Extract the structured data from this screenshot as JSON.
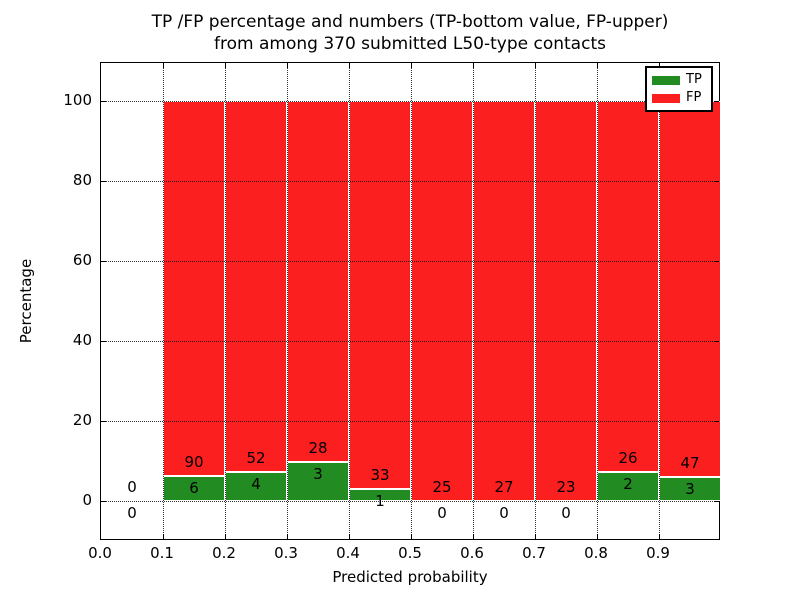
{
  "chart_data": {
    "type": "bar",
    "subtype": "stacked-percentage-histogram",
    "title_lines": [
      "TP /FP percentage and numbers (TP-bottom value, FP-upper)",
      "from among 370 submitted L50-type contacts"
    ],
    "total_contacts_in_title": 370,
    "xlabel": "Predicted probability",
    "ylabel": "Percentage",
    "xlim": [
      0.0,
      1.0
    ],
    "ylim": [
      -10,
      109.5
    ],
    "xticks": [
      {
        "value": 0.0,
        "label": "0.0"
      },
      {
        "value": 0.1,
        "label": "0.1"
      },
      {
        "value": 0.2,
        "label": "0.2"
      },
      {
        "value": 0.3,
        "label": "0.3"
      },
      {
        "value": 0.4,
        "label": "0.4"
      },
      {
        "value": 0.5,
        "label": "0.5"
      },
      {
        "value": 0.6,
        "label": "0.6"
      },
      {
        "value": 0.7,
        "label": "0.7"
      },
      {
        "value": 0.8,
        "label": "0.8"
      },
      {
        "value": 0.9,
        "label": "0.9"
      }
    ],
    "yticks": [
      {
        "value": 0,
        "label": "0"
      },
      {
        "value": 20,
        "label": "20"
      },
      {
        "value": 40,
        "label": "40"
      },
      {
        "value": 60,
        "label": "60"
      },
      {
        "value": 80,
        "label": "80"
      },
      {
        "value": 100,
        "label": "100"
      }
    ],
    "grid": {
      "visible": true,
      "style": "dotted",
      "color": "#000000"
    },
    "colors": {
      "tp": "#228b22",
      "fp": "#fb1f1f",
      "bar_edge": "#ffffff"
    },
    "legend": {
      "position": "upper-right",
      "entries": [
        {
          "label": "TP",
          "color": "#228b22"
        },
        {
          "label": "FP",
          "color": "#fb1f1f"
        }
      ]
    },
    "bins": [
      {
        "x0": 0.0,
        "x1": 0.1,
        "tp": 0,
        "fp": 0,
        "tp_pct": 0,
        "fp_pct": 0
      },
      {
        "x0": 0.1,
        "x1": 0.2,
        "tp": 6,
        "fp": 90,
        "tp_pct": 6.25,
        "fp_pct": 93.75
      },
      {
        "x0": 0.2,
        "x1": 0.3,
        "tp": 4,
        "fp": 52,
        "tp_pct": 7.14,
        "fp_pct": 92.86
      },
      {
        "x0": 0.3,
        "x1": 0.4,
        "tp": 3,
        "fp": 28,
        "tp_pct": 9.68,
        "fp_pct": 90.32
      },
      {
        "x0": 0.4,
        "x1": 0.5,
        "tp": 1,
        "fp": 33,
        "tp_pct": 2.94,
        "fp_pct": 97.06
      },
      {
        "x0": 0.5,
        "x1": 0.6,
        "tp": 0,
        "fp": 25,
        "tp_pct": 0,
        "fp_pct": 100
      },
      {
        "x0": 0.6,
        "x1": 0.7,
        "tp": 0,
        "fp": 27,
        "tp_pct": 0,
        "fp_pct": 100
      },
      {
        "x0": 0.7,
        "x1": 0.8,
        "tp": 0,
        "fp": 23,
        "tp_pct": 0,
        "fp_pct": 100
      },
      {
        "x0": 0.8,
        "x1": 0.9,
        "tp": 2,
        "fp": 26,
        "tp_pct": 7.14,
        "fp_pct": 92.86
      },
      {
        "x0": 0.9,
        "x1": 1.0,
        "tp": 3,
        "fp": 47,
        "tp_pct": 6.0,
        "fp_pct": 94.0
      }
    ]
  }
}
